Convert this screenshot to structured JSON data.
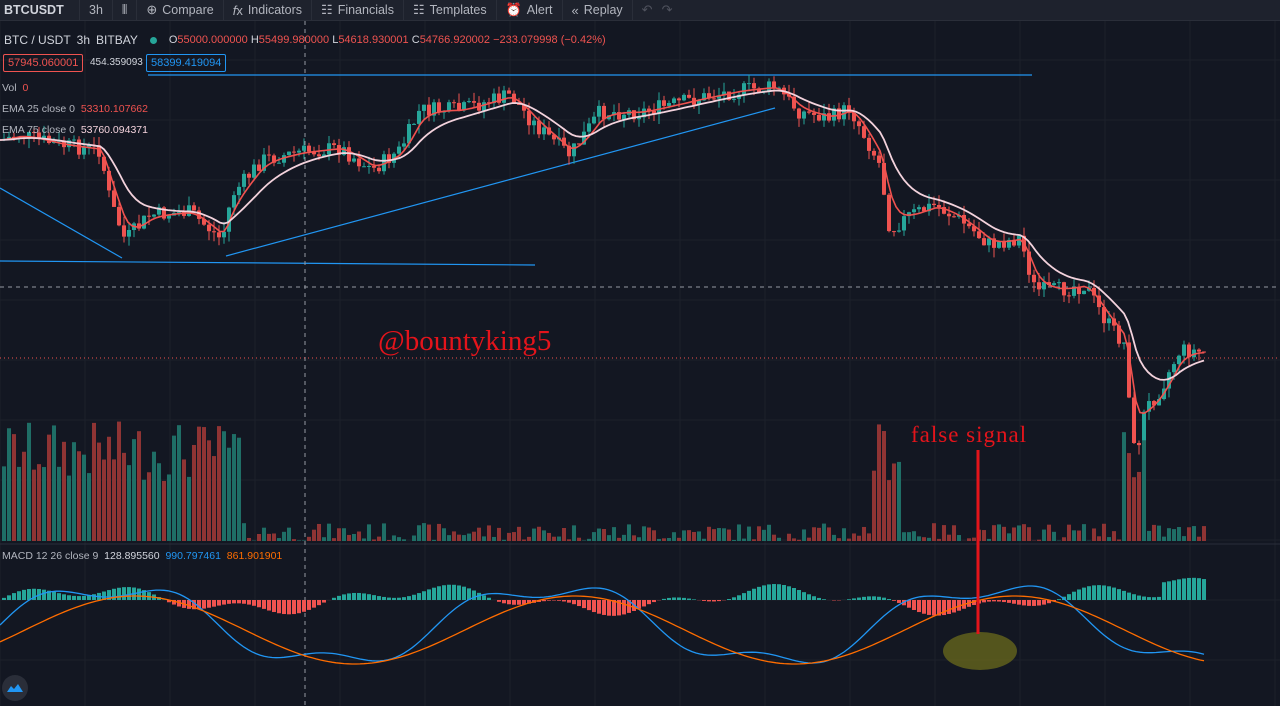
{
  "toolbar": {
    "symbol": "BTCUSDT",
    "interval": "3h",
    "compare": "Compare",
    "indicators": "Indicators",
    "financials": "Financials",
    "templates": "Templates",
    "alert": "Alert",
    "replay": "Replay"
  },
  "legend": {
    "pair": "BTC / USDT",
    "interval": "3h",
    "exchange": "BITBAY",
    "open_label": "O",
    "open": "55000.000000",
    "high_label": "H",
    "high": "55499.980000",
    "low_label": "L",
    "low": "54618.930001",
    "close_label": "C",
    "close": "54766.920002",
    "change": "−233.079998 (−0.42%)",
    "bid": "57945.060001",
    "spread": "454.359093",
    "ask": "58399.419094"
  },
  "indicators": {
    "vol_label": "Vol",
    "vol_value": "0",
    "ema25_label": "EMA 25 close 0",
    "ema25_value": "53310.107662",
    "ema75_label": "EMA 75 close 0",
    "ema75_value": "53760.094371",
    "macd_label": "MACD 12 26 close 9",
    "macd_hist": "128.895560",
    "macd_line": "990.797461",
    "macd_signal": "861.901901"
  },
  "annotations": {
    "watermark": "@bountyking5",
    "false_signal": "false signal"
  },
  "colors": {
    "background": "#131722",
    "up": "#26a69a",
    "down": "#ef5350",
    "ema25": "#f0524f",
    "ema75": "#f3d2dc",
    "trendline": "#2196f3",
    "macd_line": "#2196f3",
    "signal_line": "#ff6d00",
    "annotation": "#e4141b",
    "highlight": "#6b6b1c"
  },
  "icons": [
    "candles-icon",
    "plus-circle-icon",
    "fx-icon",
    "financials-icon",
    "templates-icon",
    "alarm-clock-icon",
    "replay-icon",
    "undo-icon",
    "redo-icon",
    "tradingview-logo-icon"
  ]
}
